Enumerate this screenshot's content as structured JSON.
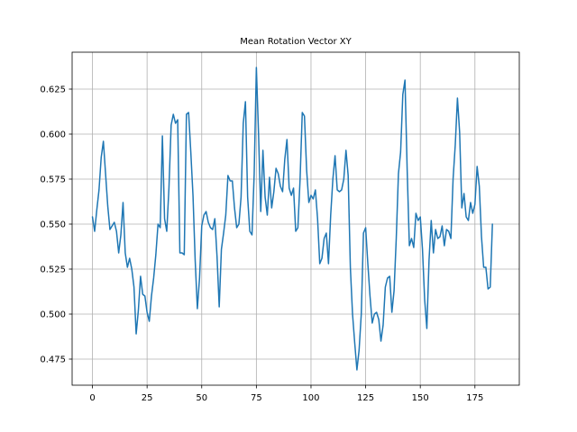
{
  "chart_data": {
    "type": "line",
    "title": "Mean Rotation Vector XY",
    "xlabel": "",
    "ylabel": "",
    "xlim": [
      -9.3,
      195.3
    ],
    "ylim": [
      0.4605,
      0.6455
    ],
    "x_ticks": [
      0,
      25,
      50,
      75,
      100,
      125,
      150,
      175
    ],
    "x_tick_labels": [
      "0",
      "25",
      "50",
      "75",
      "100",
      "125",
      "150",
      "175"
    ],
    "y_ticks": [
      0.475,
      0.5,
      0.525,
      0.55,
      0.575,
      0.6,
      0.625
    ],
    "y_tick_labels": [
      "0.475",
      "0.500",
      "0.525",
      "0.550",
      "0.575",
      "0.600",
      "0.625"
    ],
    "grid": true,
    "legend": "none",
    "series": [
      {
        "color": "#1f77b4",
        "x_start": 0,
        "x_step": 1,
        "values": [
          0.554,
          0.546,
          0.558,
          0.569,
          0.587,
          0.596,
          0.578,
          0.56,
          0.547,
          0.549,
          0.551,
          0.546,
          0.534,
          0.544,
          0.562,
          0.534,
          0.526,
          0.531,
          0.525,
          0.515,
          0.489,
          0.502,
          0.521,
          0.511,
          0.51,
          0.501,
          0.496,
          0.51,
          0.52,
          0.533,
          0.55,
          0.548,
          0.599,
          0.553,
          0.546,
          0.57,
          0.605,
          0.611,
          0.606,
          0.608,
          0.534,
          0.534,
          0.533,
          0.611,
          0.612,
          0.59,
          0.566,
          0.53,
          0.503,
          0.52,
          0.549,
          0.555,
          0.557,
          0.551,
          0.548,
          0.547,
          0.553,
          0.532,
          0.504,
          0.536,
          0.545,
          0.555,
          0.577,
          0.574,
          0.574,
          0.559,
          0.548,
          0.55,
          0.565,
          0.606,
          0.618,
          0.565,
          0.546,
          0.544,
          0.578,
          0.637,
          0.6,
          0.557,
          0.591,
          0.565,
          0.555,
          0.576,
          0.559,
          0.568,
          0.581,
          0.578,
          0.571,
          0.568,
          0.586,
          0.597,
          0.57,
          0.566,
          0.57,
          0.546,
          0.548,
          0.575,
          0.612,
          0.61,
          0.58,
          0.562,
          0.566,
          0.564,
          0.569,
          0.553,
          0.528,
          0.531,
          0.542,
          0.545,
          0.528,
          0.555,
          0.575,
          0.588,
          0.569,
          0.568,
          0.569,
          0.575,
          0.591,
          0.577,
          0.526,
          0.5,
          0.484,
          0.469,
          0.48,
          0.5,
          0.545,
          0.548,
          0.528,
          0.51,
          0.495,
          0.5,
          0.501,
          0.497,
          0.485,
          0.494,
          0.515,
          0.52,
          0.521,
          0.501,
          0.513,
          0.542,
          0.578,
          0.59,
          0.622,
          0.63,
          0.58,
          0.538,
          0.542,
          0.537,
          0.556,
          0.552,
          0.554,
          0.536,
          0.508,
          0.492,
          0.53,
          0.552,
          0.534,
          0.547,
          0.542,
          0.543,
          0.549,
          0.538,
          0.547,
          0.546,
          0.542,
          0.575,
          0.594,
          0.62,
          0.601,
          0.559,
          0.567,
          0.554,
          0.552,
          0.562,
          0.556,
          0.561,
          0.582,
          0.571,
          0.543,
          0.526,
          0.526,
          0.514,
          0.515,
          0.55
        ]
      }
    ]
  }
}
